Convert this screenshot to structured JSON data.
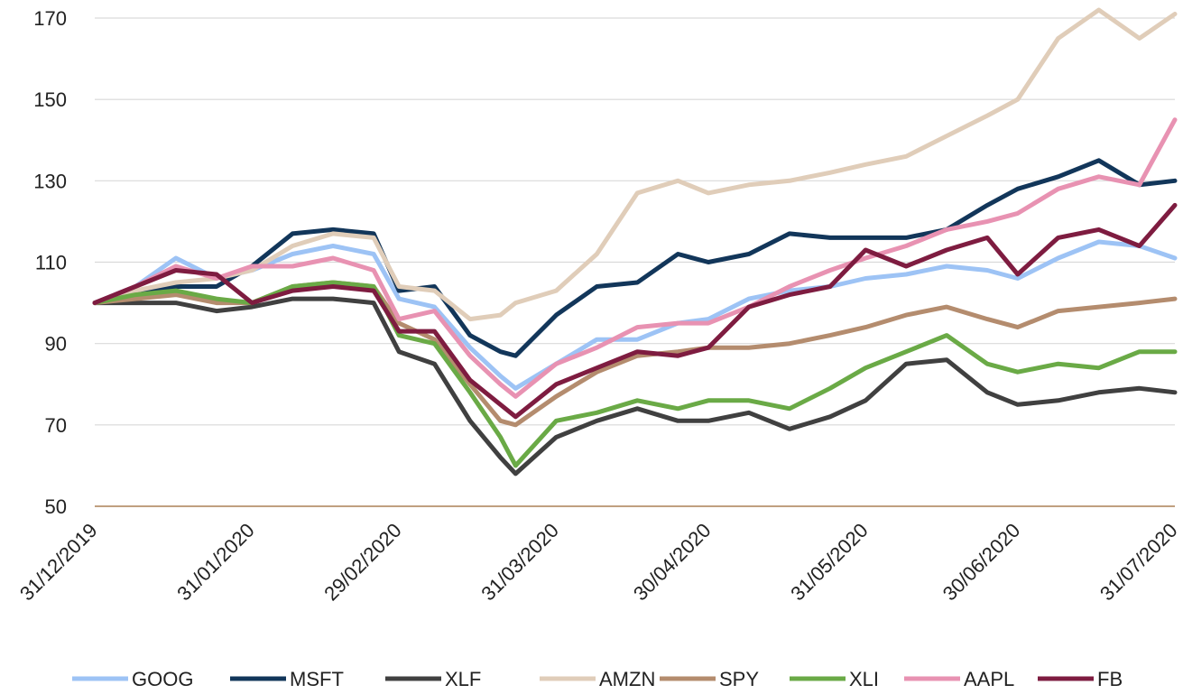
{
  "chart_data": {
    "type": "line",
    "title": "",
    "xlabel": "",
    "ylabel": "",
    "ylim": [
      50,
      170
    ],
    "yticks": [
      50,
      70,
      90,
      110,
      130,
      150,
      170
    ],
    "xlim": [
      "31/12/2019",
      "31/07/2020"
    ],
    "xticks": [
      "31/12/2019",
      "31/01/2020",
      "29/02/2020",
      "31/03/2020",
      "30/04/2020",
      "31/05/2020",
      "30/06/2020",
      "31/07/2020"
    ],
    "grid": "horizontal",
    "legend_position": "bottom",
    "x": [
      "31/12/2019",
      "08/01/2020",
      "16/01/2020",
      "24/01/2020",
      "31/01/2020",
      "08/02/2020",
      "16/02/2020",
      "24/02/2020",
      "29/02/2020",
      "07/03/2020",
      "14/03/2020",
      "20/03/2020",
      "23/03/2020",
      "31/03/2020",
      "08/04/2020",
      "16/04/2020",
      "24/04/2020",
      "30/04/2020",
      "08/05/2020",
      "16/05/2020",
      "24/05/2020",
      "31/05/2020",
      "08/06/2020",
      "16/06/2020",
      "24/06/2020",
      "30/06/2020",
      "08/07/2020",
      "16/07/2020",
      "24/07/2020",
      "31/07/2020"
    ],
    "series": [
      {
        "name": "GOOG",
        "color": "#9dc3f5",
        "values": [
          100,
          104,
          111,
          106,
          108,
          112,
          114,
          112,
          101,
          99,
          89,
          82,
          79,
          85,
          91,
          91,
          95,
          96,
          101,
          103,
          104,
          106,
          107,
          109,
          108,
          106,
          111,
          115,
          114,
          111
        ]
      },
      {
        "name": "MSFT",
        "color": "#12365a",
        "values": [
          100,
          103,
          104,
          104,
          109,
          117,
          118,
          117,
          103,
          104,
          92,
          88,
          87,
          97,
          104,
          105,
          112,
          110,
          112,
          117,
          116,
          116,
          116,
          118,
          124,
          128,
          131,
          135,
          129,
          130
        ]
      },
      {
        "name": "XLF",
        "color": "#404040",
        "values": [
          100,
          100,
          100,
          98,
          99,
          101,
          101,
          100,
          88,
          85,
          71,
          62,
          58,
          67,
          71,
          74,
          71,
          71,
          73,
          69,
          72,
          76,
          85,
          86,
          78,
          75,
          76,
          78,
          79,
          78
        ]
      },
      {
        "name": "AMZN",
        "color": "#e0cdb9",
        "values": [
          100,
          103,
          105,
          106,
          108,
          114,
          117,
          116,
          104,
          103,
          96,
          97,
          100,
          103,
          112,
          127,
          130,
          127,
          129,
          130,
          132,
          134,
          136,
          141,
          146,
          150,
          165,
          172,
          165,
          171
        ]
      },
      {
        "name": "SPY",
        "color": "#b48c6e",
        "values": [
          100,
          101,
          102,
          100,
          100,
          104,
          105,
          104,
          95,
          91,
          80,
          71,
          70,
          77,
          83,
          87,
          88,
          89,
          89,
          90,
          92,
          94,
          97,
          99,
          96,
          94,
          98,
          99,
          100,
          101
        ]
      },
      {
        "name": "XLI",
        "color": "#6aaa46",
        "values": [
          100,
          102,
          103,
          101,
          100,
          104,
          105,
          104,
          92,
          90,
          78,
          67,
          60,
          71,
          73,
          76,
          74,
          76,
          76,
          74,
          79,
          84,
          88,
          92,
          85,
          83,
          85,
          84,
          88,
          88
        ]
      },
      {
        "name": "AAPL",
        "color": "#e892b2",
        "values": [
          100,
          104,
          109,
          106,
          109,
          109,
          111,
          108,
          96,
          98,
          87,
          80,
          77,
          85,
          89,
          94,
          95,
          95,
          99,
          104,
          108,
          111,
          114,
          118,
          120,
          122,
          128,
          131,
          129,
          145
        ]
      },
      {
        "name": "FB",
        "color": "#7e1c40",
        "values": [
          100,
          104,
          108,
          107,
          100,
          103,
          104,
          103,
          93,
          93,
          81,
          75,
          72,
          80,
          84,
          88,
          87,
          89,
          99,
          102,
          104,
          113,
          109,
          113,
          116,
          107,
          116,
          118,
          114,
          124
        ]
      }
    ]
  }
}
